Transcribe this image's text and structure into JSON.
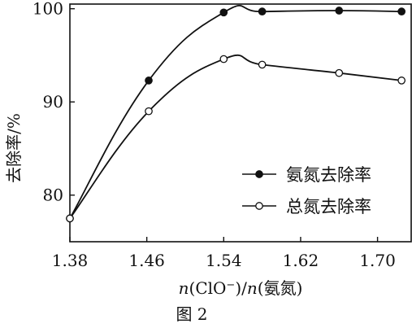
{
  "chart_data": {
    "type": "line",
    "xlabel_parts": {
      "n1": "n",
      "mid": "(ClO",
      "sup": "−",
      "mid2": ")/",
      "n2": "n",
      "tail": "(氨氮)"
    },
    "ylabel": "去除率/%",
    "caption": "图 2",
    "xlim": [
      1.38,
      1.735
    ],
    "ylim": [
      75,
      100.5
    ],
    "xticks": [
      1.38,
      1.46,
      1.54,
      1.62,
      1.7
    ],
    "xtick_labels": [
      "1.38",
      "1.46",
      "1.54",
      "1.62",
      "1.70"
    ],
    "yticks": [
      80,
      90,
      100
    ],
    "ytick_labels": [
      "80",
      "90",
      "100"
    ],
    "grid": false,
    "legend_position": "lower-right",
    "series": [
      {
        "name": "氨氮去除率",
        "marker": "filled",
        "x": [
          1.38,
          1.462,
          1.54,
          1.58,
          1.66,
          1.725
        ],
        "y": [
          77.5,
          92.3,
          99.6,
          99.7,
          99.8,
          99.7
        ]
      },
      {
        "name": "总氮去除率",
        "marker": "open",
        "x": [
          1.38,
          1.462,
          1.54,
          1.58,
          1.66,
          1.725
        ],
        "y": [
          77.5,
          89.0,
          94.6,
          94.0,
          93.1,
          92.3
        ]
      }
    ]
  }
}
